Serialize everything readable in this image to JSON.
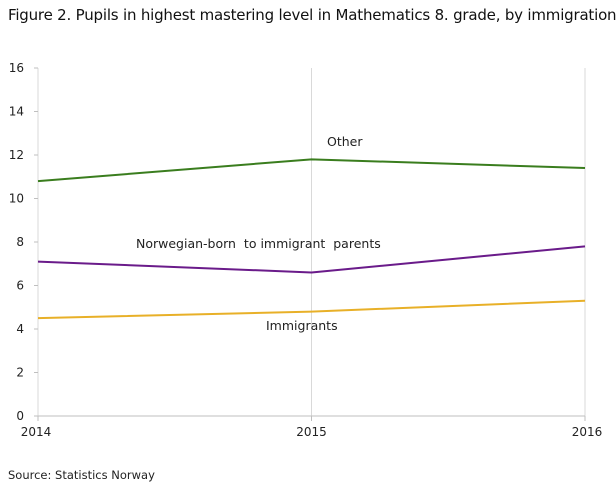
{
  "header": {
    "title": "Figure 2. Pupils in highest mastering level in Mathematics 8. grade, by immigration"
  },
  "footer": {
    "source": "Source: Statistics Norway"
  },
  "chart_data": {
    "type": "line",
    "title": "Figure 2. Pupils in highest mastering level in Mathematics 8. grade, by immigration",
    "xlabel": "",
    "ylabel": "",
    "x": [
      2014,
      2015,
      2016
    ],
    "xlim": [
      2014,
      2016
    ],
    "ylim": [
      0,
      16
    ],
    "yticks": [
      0,
      2,
      4,
      6,
      8,
      10,
      12,
      14,
      16
    ],
    "xticks": [
      2014,
      2015,
      2016
    ],
    "grid": "vertical gridlines at x ticks",
    "legend": "inline labels",
    "series": [
      {
        "name": "Other",
        "values": [
          10.8,
          11.8,
          11.4
        ],
        "color": "#3a7d1e"
      },
      {
        "name": "Norwegian-born  to immigrant  parents",
        "values": [
          7.1,
          6.6,
          7.8
        ],
        "color": "#6a1b8a"
      },
      {
        "name": "Immigrants",
        "values": [
          4.5,
          4.8,
          5.3
        ],
        "color": "#e8b028"
      }
    ]
  }
}
